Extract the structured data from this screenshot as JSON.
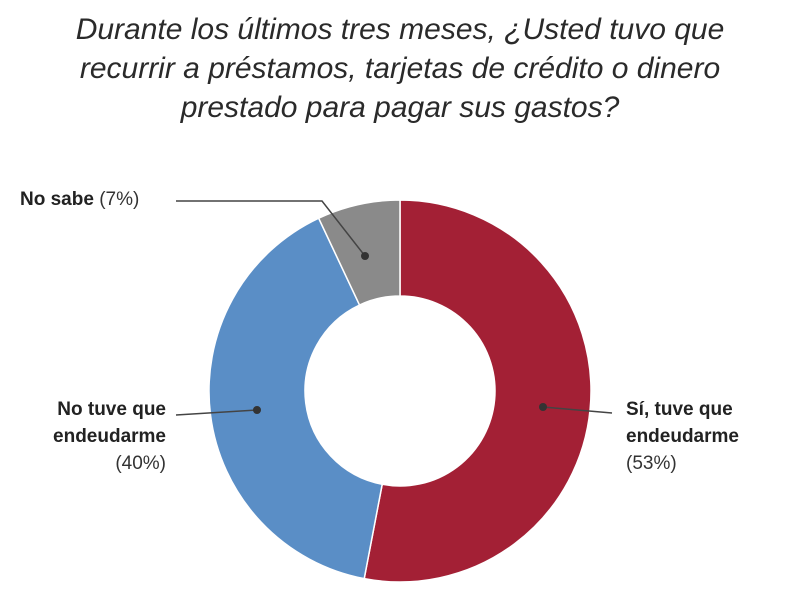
{
  "chart_data": {
    "type": "pie",
    "subtype": "donut",
    "title_lines": [
      "Durante los últimos tres meses, ¿Usted tuvo que",
      "recurrir a préstamos, tarjetas de crédito o dinero",
      "prestado para pagar sus gastos?"
    ],
    "slices": [
      {
        "name_lines": [
          "Sí, tuve que",
          "endeudarme"
        ],
        "value": 53,
        "value_label": "(53%)",
        "color": "#a32035"
      },
      {
        "name_lines": [
          "No tuve que",
          "endeudarme"
        ],
        "value": 40,
        "value_label": "(40%)",
        "color": "#5a8ec6"
      },
      {
        "name_lines": [
          "No sabe"
        ],
        "value": 7,
        "value_label": "(7%)",
        "color": "#8a8a8a"
      }
    ],
    "legend": "none",
    "labels": "callouts"
  }
}
